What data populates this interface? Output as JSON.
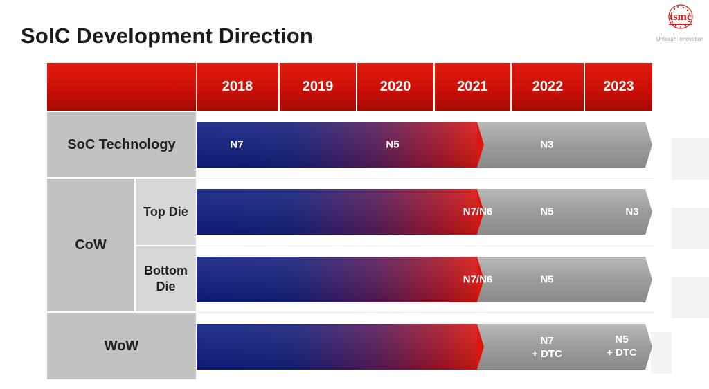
{
  "title": "SoIC Development Direction",
  "logo": {
    "wordmark": "tsmc",
    "tagline": "Unleash Innovation",
    "color": "#cc1c1c"
  },
  "years": [
    "2018",
    "2019",
    "2020",
    "2021",
    "2022",
    "2023"
  ],
  "rows": {
    "soc": {
      "label": "SoC Technology",
      "stages": [
        "N7",
        "N5",
        "N3"
      ]
    },
    "cow": {
      "label": "CoW",
      "top_die": {
        "label": "Top Die",
        "stages": [
          "N7/N6",
          "N5",
          "N3"
        ]
      },
      "bottom_die": {
        "label": "Bottom\nDie",
        "stages": [
          "N7/N6",
          "N5"
        ]
      }
    },
    "wow": {
      "label": "WoW",
      "stages": [
        "N7\n+ DTC",
        "N5\n+ DTC"
      ]
    }
  },
  "colors": {
    "header_red": "#cc1006",
    "bar_blue": "#0e1d82",
    "bar_red": "#e3160d",
    "bar_grey": "#9b9b9b"
  }
}
